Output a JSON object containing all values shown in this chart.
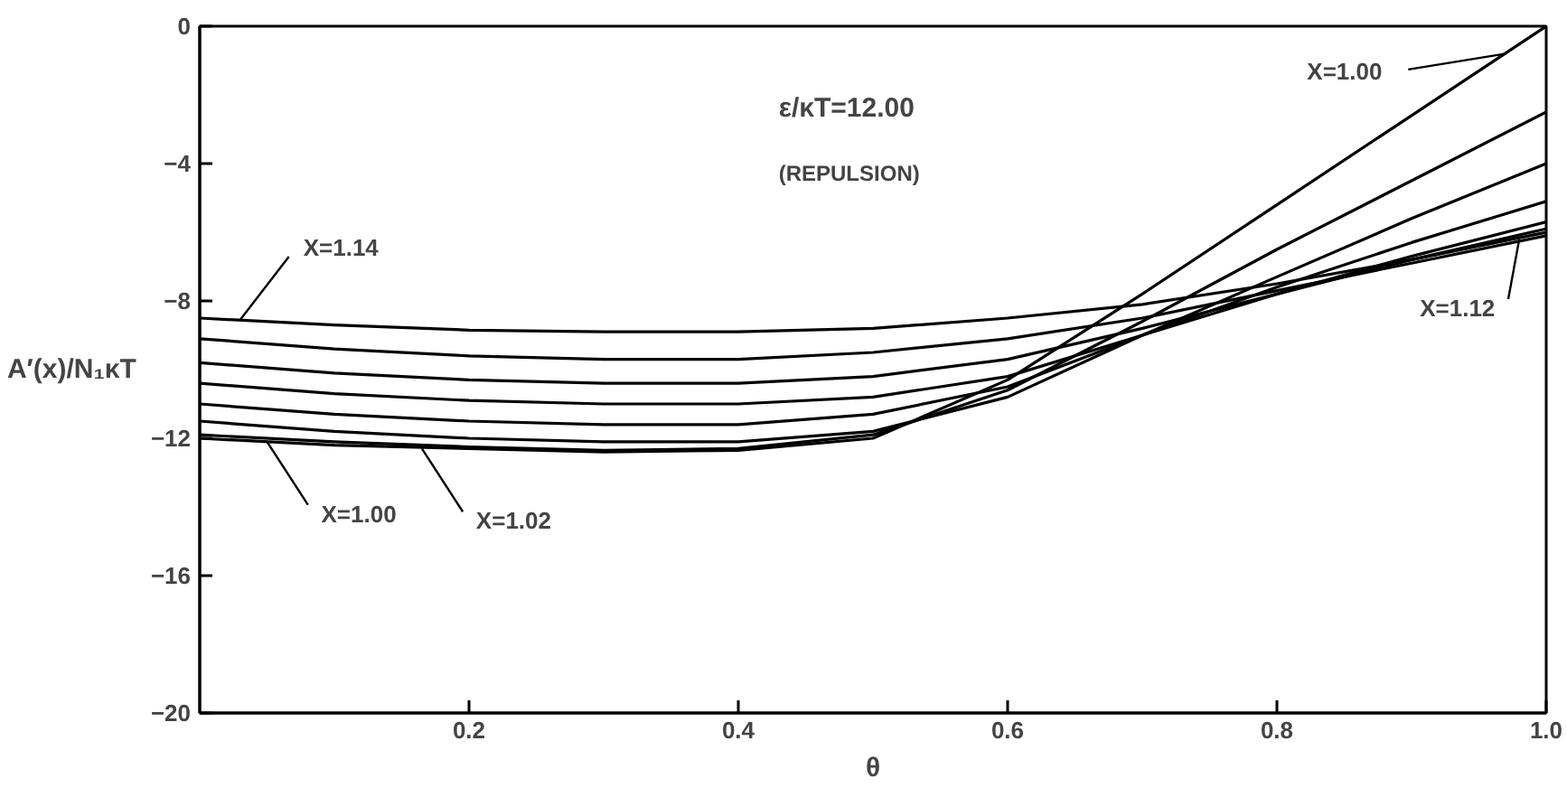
{
  "chart_data": {
    "type": "line",
    "xlabel": "θ",
    "ylabel": "A′(x)/N₁κT",
    "x": [
      0,
      0.1,
      0.2,
      0.3,
      0.4,
      0.5,
      0.6,
      0.7,
      0.8,
      0.9,
      1.0
    ],
    "series": [
      {
        "color": "#000000",
        "values": [
          -12.0,
          -12.2,
          -12.3,
          -12.4,
          -12.35,
          -12.0,
          -10.3,
          -7.8,
          -5.2,
          -2.6,
          0.0
        ]
      },
      {
        "color": "#000000",
        "values": [
          -11.9,
          -12.1,
          -12.25,
          -12.35,
          -12.3,
          -11.9,
          -10.6,
          -8.6,
          -6.5,
          -4.5,
          -2.5
        ]
      },
      {
        "color": "#000000",
        "values": [
          -11.5,
          -11.8,
          -12.0,
          -12.1,
          -12.1,
          -11.8,
          -10.8,
          -9.0,
          -7.3,
          -5.6,
          -4.0
        ]
      },
      {
        "color": "#000000",
        "values": [
          -11.0,
          -11.3,
          -11.5,
          -11.6,
          -11.6,
          -11.3,
          -10.5,
          -9.0,
          -7.6,
          -6.3,
          -5.1
        ]
      },
      {
        "color": "#000000",
        "values": [
          -10.4,
          -10.7,
          -10.9,
          -11.0,
          -11.0,
          -10.8,
          -10.2,
          -9.0,
          -7.8,
          -6.7,
          -5.7
        ]
      },
      {
        "color": "#000000",
        "values": [
          -9.8,
          -10.1,
          -10.3,
          -10.4,
          -10.4,
          -10.2,
          -9.7,
          -8.8,
          -7.8,
          -6.8,
          -5.9
        ]
      },
      {
        "color": "#000000",
        "values": [
          -9.1,
          -9.4,
          -9.6,
          -9.7,
          -9.7,
          -9.5,
          -9.1,
          -8.5,
          -7.7,
          -6.9,
          -6.1
        ]
      },
      {
        "color": "#000000",
        "values": [
          -8.5,
          -8.7,
          -8.85,
          -8.9,
          -8.9,
          -8.8,
          -8.5,
          -8.1,
          -7.5,
          -6.8,
          -6.0
        ]
      }
    ],
    "xlim": [
      0,
      1
    ],
    "ylim": [
      -20,
      0
    ],
    "xticks": [
      0.2,
      0.4,
      0.6,
      0.8,
      {
        "value": 1.0,
        "label": "1.0"
      }
    ],
    "yticks": [
      0,
      -4,
      -8,
      -12,
      -16,
      -20
    ],
    "annotations": [
      {
        "text": "X=1.14",
        "x": 0.03,
        "y": -8.55
      },
      {
        "text": "X=1.00",
        "x": 0.05,
        "y": -12.1
      },
      {
        "text": "X=1.02",
        "x": 0.165,
        "y": -12.3
      },
      {
        "text": "X=1.00",
        "x": 0.97,
        "y": -0.8
      },
      {
        "text": "X=1.12",
        "x": 0.98,
        "y": -6.2
      },
      "ε/κT=12.00",
      "(REPULSION)"
    ]
  }
}
